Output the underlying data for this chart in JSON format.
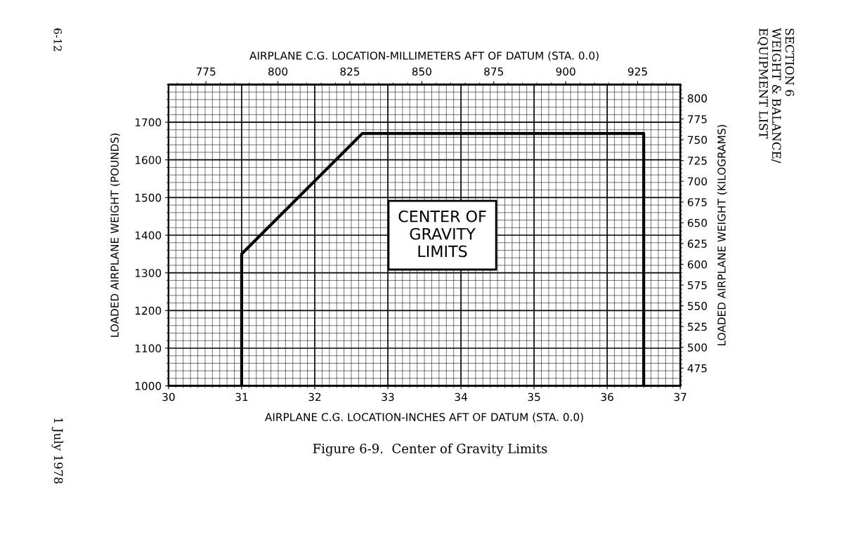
{
  "chart_data": {
    "type": "line",
    "title": "Figure 6-9.  Center of Gravity Limits",
    "xlabel": "AIRPLANE C.G. LOCATION-INCHES AFT OF DATUM (STA. 0.0)",
    "ylabel": "LOADED AIRPLANE WEIGHT (POUNDS)",
    "x2label": "AIRPLANE C.G. LOCATION-MILLIMETERS AFT OF DATUM (STA. 0.0)",
    "y2label": "LOADED AIRPLANE WEIGHT (KILOGRAMS)",
    "series": [
      {
        "color": "#000000",
        "x": [
          31.0,
          31.0,
          32.65,
          36.5,
          36.5
        ],
        "values": [
          1000,
          1350,
          1670,
          1670,
          1000
        ]
      }
    ],
    "xlim": [
      30,
      37
    ],
    "xticks": [
      30,
      31,
      32,
      33,
      34,
      35,
      36,
      37
    ],
    "ylim": [
      1000,
      1800
    ],
    "yticks": [
      1000,
      1100,
      1200,
      1300,
      1400,
      1500,
      1600,
      1700
    ],
    "x2lim": [
      762,
      939.8
    ],
    "x2ticks": [
      775,
      800,
      825,
      850,
      875,
      900,
      925
    ],
    "y2lim": [
      453.6,
      816.5
    ],
    "y2ticks": [
      475,
      500,
      525,
      550,
      575,
      600,
      625,
      650,
      675,
      700,
      725,
      750,
      775,
      800
    ],
    "grid": true,
    "marker": "none",
    "line_style": "solid",
    "annotations": [
      "CENTER OF\nGRAVITY\nLIMITS",
      "SECTION 6\nWEIGHT & BALANCE/\nEQUIPMENT LIST",
      "6-12",
      "1 July 1978"
    ]
  }
}
